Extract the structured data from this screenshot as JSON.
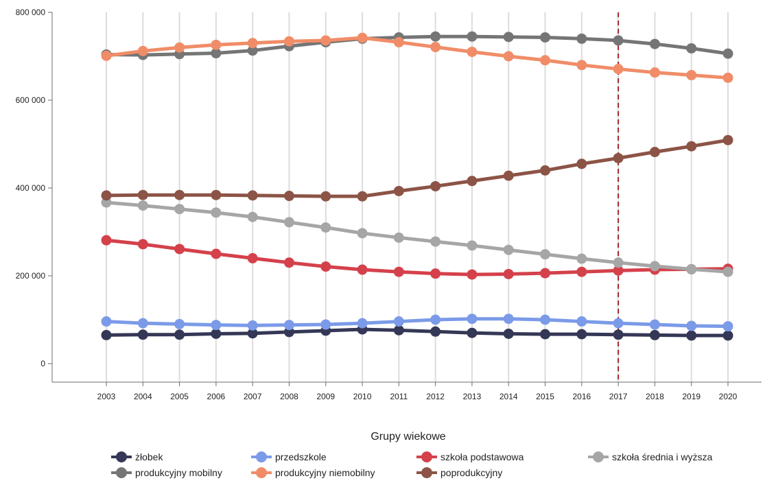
{
  "chart_data": {
    "type": "line",
    "title": "",
    "xlabel": "",
    "ylabel": "",
    "x": [
      2003,
      2004,
      2005,
      2006,
      2007,
      2008,
      2009,
      2010,
      2011,
      2012,
      2013,
      2014,
      2015,
      2016,
      2017,
      2018,
      2019,
      2020
    ],
    "x_tick_labels": [
      "2003",
      "2004",
      "2005",
      "2006",
      "2007",
      "2008",
      "2009",
      "2010",
      "2011",
      "2012",
      "2013",
      "2014",
      "2015",
      "2016",
      "2017",
      "2018",
      "2019",
      "2020"
    ],
    "ylim": [
      -40000,
      800000
    ],
    "y_ticks": [
      0,
      200000,
      400000,
      600000,
      800000
    ],
    "y_tick_labels": [
      "0",
      "200 000",
      "400 000",
      "600 000",
      "800 000"
    ],
    "grid": "vertical",
    "reference_line": {
      "x": 2017,
      "color": "#a3262a",
      "style": "dashed"
    },
    "legend": {
      "title": "Grupy wiekowe",
      "position": "bottom"
    },
    "series": [
      {
        "name": "żłobek",
        "color": "#343755",
        "values": [
          65000,
          66000,
          66000,
          68000,
          69000,
          72000,
          75000,
          78000,
          76000,
          73000,
          70000,
          68000,
          67000,
          67000,
          66000,
          65000,
          64000,
          64000
        ]
      },
      {
        "name": "przedszkole",
        "color": "#7b9be8",
        "values": [
          96000,
          92000,
          90000,
          88000,
          87000,
          88000,
          89000,
          92000,
          96000,
          100000,
          102000,
          102000,
          100000,
          96000,
          92000,
          89000,
          86000,
          85000
        ]
      },
      {
        "name": "szkoła podstawowa",
        "color": "#d4414b",
        "values": [
          281000,
          272000,
          261000,
          250000,
          240000,
          230000,
          221000,
          214000,
          209000,
          205000,
          203000,
          204000,
          206000,
          209000,
          212000,
          214000,
          215000,
          216000
        ]
      },
      {
        "name": "szkoła średnia i wyższa",
        "color": "#a6a6a6",
        "values": [
          367000,
          360000,
          352000,
          344000,
          334000,
          322000,
          310000,
          297000,
          287000,
          278000,
          269000,
          259000,
          249000,
          239000,
          230000,
          222000,
          215000,
          209000
        ]
      },
      {
        "name": "produkcyjny mobilny",
        "color": "#757575",
        "values": [
          704000,
          703000,
          705000,
          707000,
          713000,
          723000,
          732000,
          740000,
          743000,
          745000,
          745000,
          744000,
          743000,
          740000,
          736000,
          728000,
          718000,
          706000
        ]
      },
      {
        "name": "produkcyjny niemobilny",
        "color": "#f08d68",
        "values": [
          701000,
          712000,
          720000,
          726000,
          730000,
          734000,
          736000,
          742000,
          732000,
          721000,
          710000,
          700000,
          691000,
          680000,
          671000,
          663000,
          657000,
          651000
        ]
      },
      {
        "name": "poprodukcyjny",
        "color": "#8c5446",
        "values": [
          383000,
          384000,
          384000,
          384000,
          383000,
          382000,
          381000,
          381000,
          393000,
          404000,
          416000,
          428000,
          440000,
          455000,
          468000,
          482000,
          495000,
          509000
        ]
      }
    ]
  }
}
